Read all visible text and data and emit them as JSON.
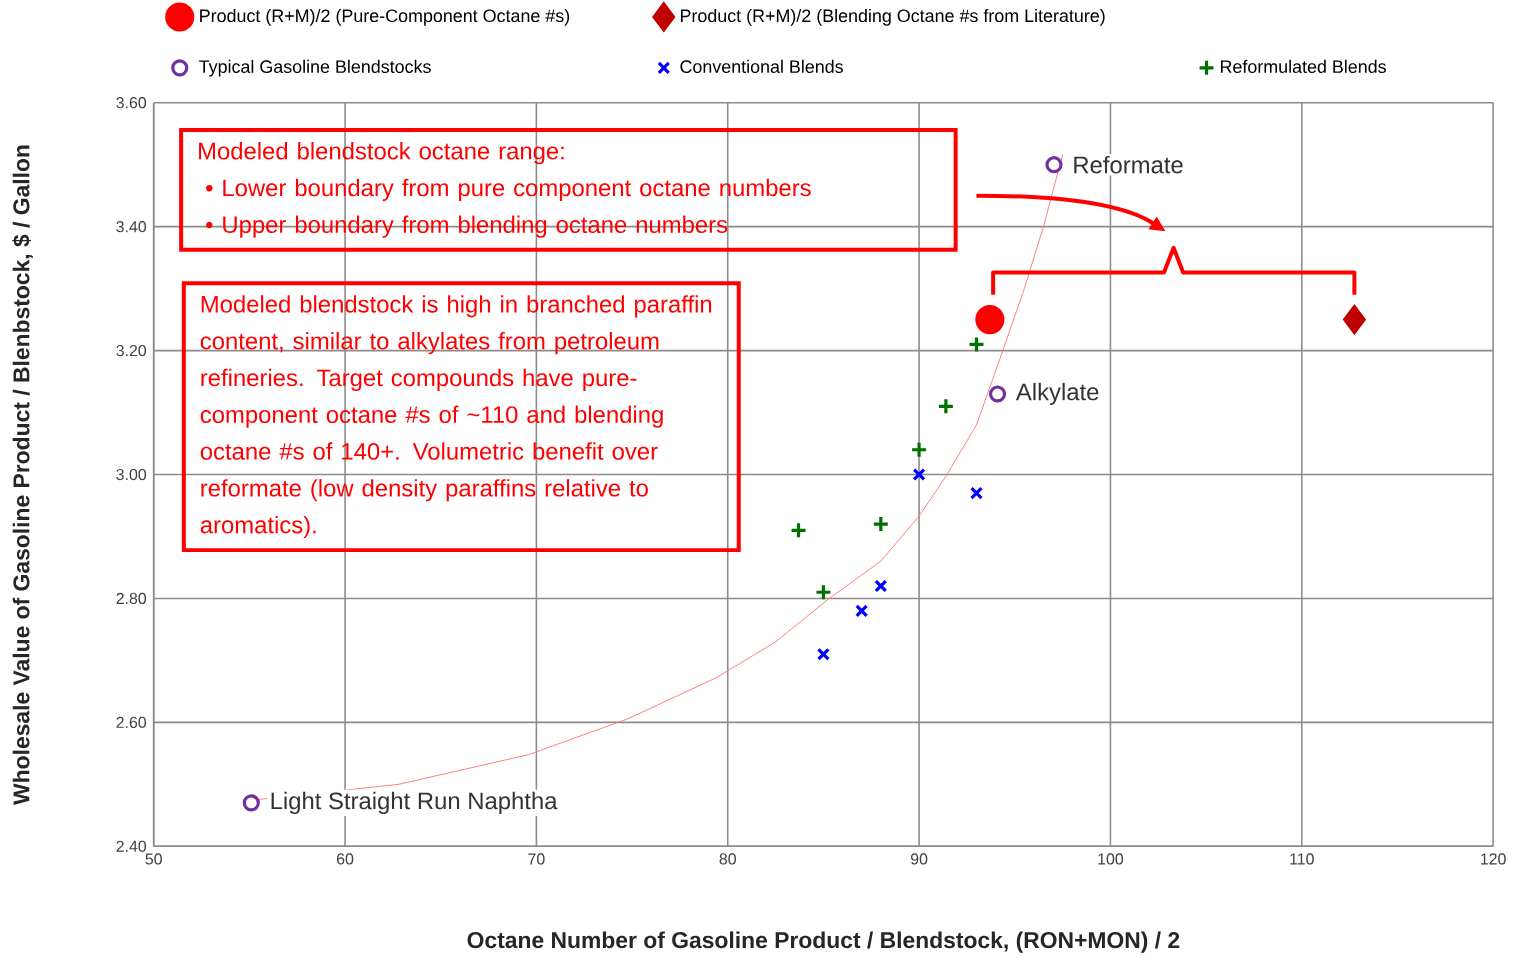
{
  "chart_data": {
    "type": "scatter",
    "xlabel": "Octane Number of Gasoline Product / Blendstock, (RON+MON) / 2",
    "ylabel": "Wholesale Value of Gasoline Product / Blenbstock, $ / Gallon",
    "xlim": [
      50,
      120
    ],
    "xticks": [
      50,
      60,
      70,
      80,
      90,
      100,
      110,
      120
    ],
    "ylim": [
      2.4,
      3.6
    ],
    "yticks": [
      {
        "value": 2.4,
        "label": "2.40"
      },
      {
        "value": 2.6,
        "label": "2.60"
      },
      {
        "value": 2.8,
        "label": "2.80"
      },
      {
        "value": 3.0,
        "label": "3.00"
      },
      {
        "value": 3.2,
        "label": "3.20"
      },
      {
        "value": 3.4,
        "label": "3.40"
      },
      {
        "value": 3.6,
        "label": "3.60"
      }
    ],
    "grid": true,
    "legend": "top",
    "series": [
      {
        "name": "Product (R+M)/2 (Pure-Component Octane #s)",
        "color": "#ff0000",
        "marker": "circle",
        "x": [
          93.7
        ],
        "values": [
          3.25
        ]
      },
      {
        "name": "Product (R+M)/2 (Blending Octane #s from Literature)",
        "color": "#c00000",
        "marker": "diamond",
        "x": [
          112.75
        ],
        "values": [
          3.25
        ]
      },
      {
        "name": "Typical Gasoline Blendstocks",
        "color": "#7030a0",
        "marker": "circle",
        "x": [
          97.05,
          94.1,
          55.1
        ],
        "values": [
          3.5,
          3.13,
          2.47
        ]
      },
      {
        "name": "Conventional Blends",
        "color": "#0000ff",
        "marker": "cross",
        "x": [
          90.0,
          93.0,
          88.0,
          87.0,
          85.0
        ],
        "values": [
          3.0,
          2.97,
          2.82,
          2.78,
          2.71
        ]
      },
      {
        "name": "Reformulated Blends",
        "color": "#007000",
        "marker": "plus",
        "x": [
          93.0,
          91.4,
          90.0,
          88.0,
          83.7,
          85.0
        ],
        "values": [
          3.21,
          3.11,
          3.04,
          2.92,
          2.91,
          2.81
        ]
      },
      {
        "type": "line",
        "color": "#ff8080",
        "marker": "none",
        "x": [
          55.3,
          62.8,
          69.6,
          74.8,
          79.4,
          82.5,
          85.3,
          88.0,
          90.0,
          91.4,
          93.0,
          94.4,
          95.5,
          96.5,
          97.5
        ],
        "values": [
          2.475,
          2.5,
          2.548,
          2.606,
          2.672,
          2.73,
          2.8,
          2.86,
          2.933,
          2.997,
          3.08,
          3.202,
          3.3,
          3.4,
          3.516
        ]
      },
      {
        "type": "line",
        "color": "#ff0000",
        "marker": "none",
        "x": [
          93.87,
          93.87,
          102.8,
          103.3,
          103.8,
          112.75,
          112.75
        ],
        "values": [
          3.29,
          3.326,
          3.326,
          3.366,
          3.326,
          3.326,
          3.29
        ]
      }
    ],
    "annotations": [
      {
        "text": "Reformate",
        "x": 97.05,
        "y": 3.5
      },
      {
        "text": "Alkylate",
        "x": 94.1,
        "y": 3.13
      },
      {
        "text": "Light Straight Run Naphtha",
        "x": 55.1,
        "y": 2.47
      },
      "Modeled blendstock octane range:",
      "•  Lower boundary from pure component octane numbers",
      "•  Upper boundary from blending octane numbers",
      "Modeled blendstock is high in branched paraffin content, similar to alkylates from petroleum refineries.  Target compounds have pure-component octane #s of ~110 and blending octane #s of 140+.  Volumetric benefit over reformate (low density paraffins relative to aromatics)."
    ]
  }
}
